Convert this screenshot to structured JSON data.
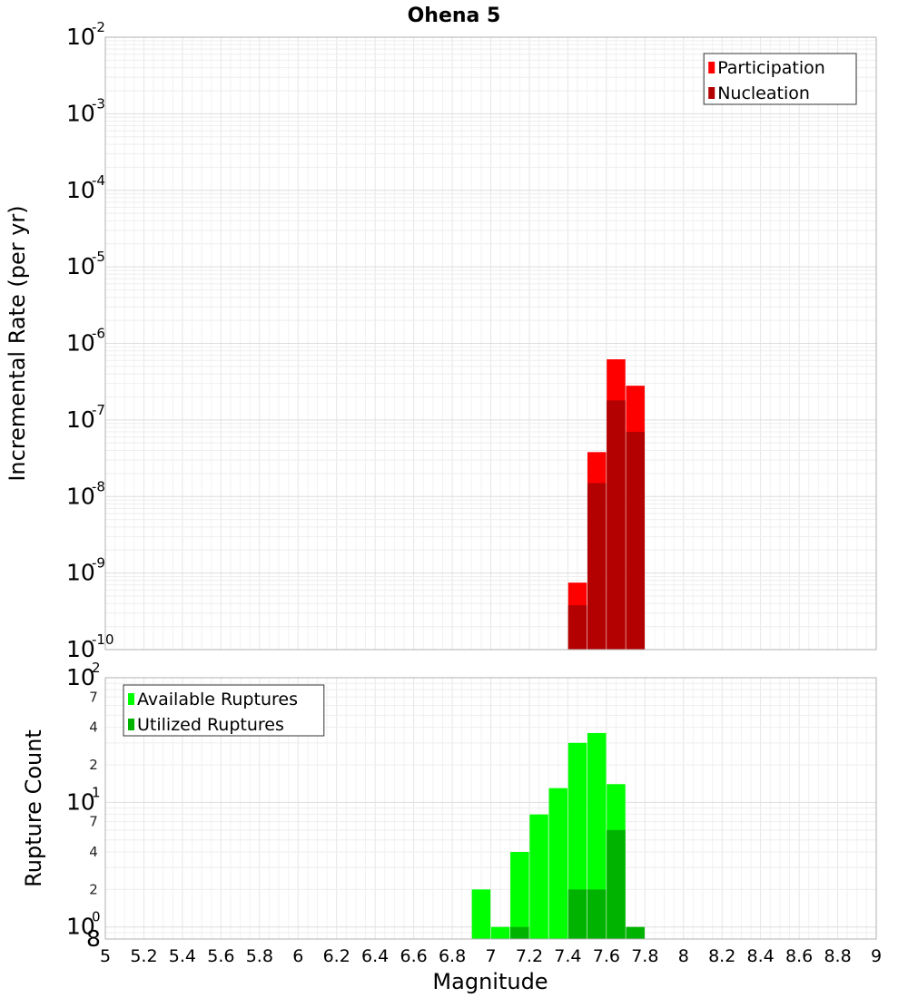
{
  "chart_data": [
    {
      "type": "bar",
      "title": "Ohena 5",
      "xlabel": "",
      "ylabel": "Incremental Rate (per yr)",
      "yscale": "log",
      "xlim": [
        5,
        9
      ],
      "ylim": [
        1e-10,
        0.01
      ],
      "x_ticks": [
        "5",
        "5.2",
        "5.4",
        "5.6",
        "5.8",
        "6",
        "6.2",
        "6.4",
        "6.6",
        "6.8",
        "7",
        "7.2",
        "7.4",
        "7.6",
        "7.8",
        "8",
        "8.2",
        "8.4",
        "8.6",
        "8.8",
        "9"
      ],
      "y_ticks": [
        {
          "base": "10",
          "exp": "-10",
          "value": 1e-10
        },
        {
          "base": "10",
          "exp": "-9",
          "value": 1e-09
        },
        {
          "base": "10",
          "exp": "-8",
          "value": 1e-08
        },
        {
          "base": "10",
          "exp": "-7",
          "value": 1e-07
        },
        {
          "base": "10",
          "exp": "-6",
          "value": 1e-06
        },
        {
          "base": "10",
          "exp": "-5",
          "value": 1e-05
        },
        {
          "base": "10",
          "exp": "-4",
          "value": 0.0001
        },
        {
          "base": "10",
          "exp": "-3",
          "value": 0.001
        },
        {
          "base": "10",
          "exp": "-2",
          "value": 0.01
        }
      ],
      "legend": {
        "position": "top-right"
      },
      "grid": true,
      "series": [
        {
          "name": "Participation",
          "color": "#ff0000",
          "points": [
            {
              "x": 7.45,
              "y": 7.5e-10
            },
            {
              "x": 7.55,
              "y": 3.8e-08
            },
            {
              "x": 7.65,
              "y": 6.2e-07
            },
            {
              "x": 7.75,
              "y": 2.8e-07
            }
          ]
        },
        {
          "name": "Nucleation",
          "color": "#b30000",
          "points": [
            {
              "x": 7.45,
              "y": 3.8e-10
            },
            {
              "x": 7.55,
              "y": 1.5e-08
            },
            {
              "x": 7.65,
              "y": 1.8e-07
            },
            {
              "x": 7.75,
              "y": 7e-08
            }
          ]
        }
      ]
    },
    {
      "type": "bar",
      "title": "",
      "xlabel": "Magnitude",
      "ylabel": "Rupture Count",
      "yscale": "log",
      "xlim": [
        5,
        9
      ],
      "ylim": [
        0.8,
        100
      ],
      "x_ticks": [
        "5",
        "5.2",
        "5.4",
        "5.6",
        "5.8",
        "6",
        "6.2",
        "6.4",
        "6.6",
        "6.8",
        "7",
        "7.2",
        "7.4",
        "7.6",
        "7.8",
        "8",
        "8.2",
        "8.4",
        "8.6",
        "8.8",
        "9"
      ],
      "y_major_ticks": [
        {
          "base": "10",
          "exp": "0",
          "value": 1
        },
        {
          "base": "10",
          "exp": "1",
          "value": 10
        },
        {
          "base": "10",
          "exp": "2",
          "value": 100
        }
      ],
      "y_minor_ticks": [
        {
          "label": "8",
          "value": 0.8
        },
        {
          "label": "2",
          "value": 2
        },
        {
          "label": "4",
          "value": 4
        },
        {
          "label": "7",
          "value": 7
        },
        {
          "label": "2",
          "value": 20
        },
        {
          "label": "4",
          "value": 40
        },
        {
          "label": "7",
          "value": 70
        }
      ],
      "legend": {
        "position": "top-left"
      },
      "grid": true,
      "series": [
        {
          "name": "Available Ruptures",
          "color": "#00ff00",
          "points": [
            {
              "x": 6.95,
              "y": 2
            },
            {
              "x": 7.05,
              "y": 1
            },
            {
              "x": 7.15,
              "y": 4
            },
            {
              "x": 7.25,
              "y": 8
            },
            {
              "x": 7.35,
              "y": 13
            },
            {
              "x": 7.45,
              "y": 30
            },
            {
              "x": 7.55,
              "y": 36
            },
            {
              "x": 7.65,
              "y": 14
            }
          ]
        },
        {
          "name": "Utilized Ruptures",
          "color": "#00b300",
          "points": [
            {
              "x": 7.15,
              "y": 1
            },
            {
              "x": 7.45,
              "y": 2
            },
            {
              "x": 7.55,
              "y": 2
            },
            {
              "x": 7.65,
              "y": 6
            },
            {
              "x": 7.75,
              "y": 1
            }
          ]
        }
      ]
    }
  ]
}
